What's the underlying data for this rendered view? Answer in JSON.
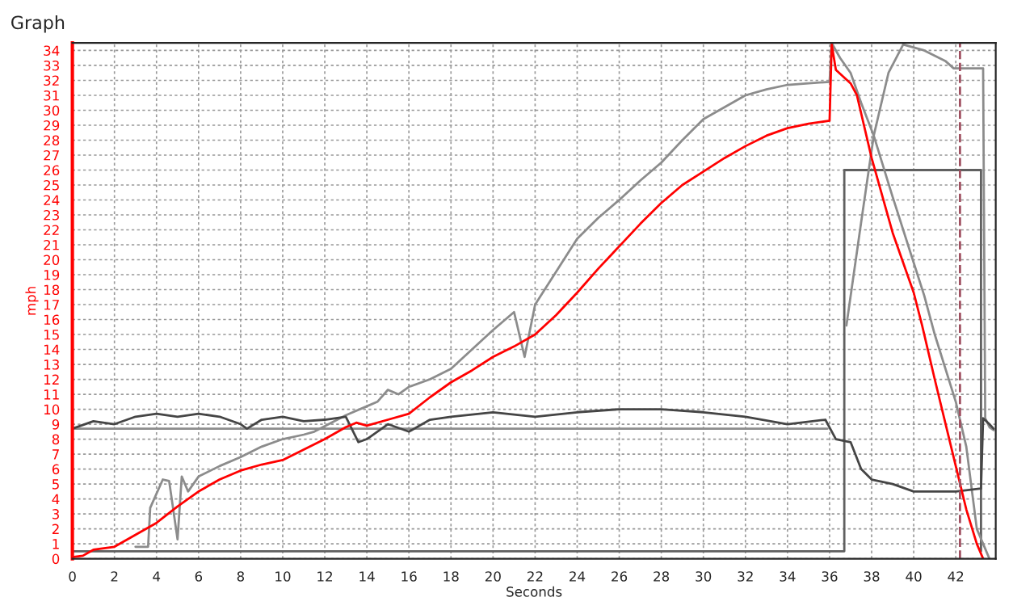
{
  "chart_data": {
    "type": "line",
    "title": "Graph",
    "xlabel": "Seconds",
    "ylabel": "mph",
    "xlim": [
      0,
      43.9
    ],
    "ylim": [
      0,
      34.5
    ],
    "xticks": [
      0,
      2,
      4,
      6,
      8,
      10,
      12,
      14,
      16,
      18,
      20,
      22,
      24,
      26,
      28,
      30,
      32,
      34,
      36,
      38,
      40,
      42
    ],
    "yticks": [
      0,
      1,
      2,
      3,
      4,
      5,
      6,
      7,
      8,
      9,
      10,
      11,
      12,
      13,
      14,
      15,
      16,
      17,
      18,
      19,
      20,
      21,
      22,
      23,
      24,
      25,
      26,
      27,
      28,
      29,
      30,
      31,
      32,
      33,
      34
    ],
    "grid": true,
    "legend": false,
    "line_style": "solid",
    "marker": "none",
    "series": [
      {
        "color": "#606060",
        "x": [
          0,
          36.7,
          36.7,
          43.2,
          43.2
        ],
        "values": [
          0.5,
          0.5,
          26,
          26,
          0.5
        ]
      },
      {
        "color": "#8c8c8c",
        "x": [
          0,
          35.9
        ],
        "values": [
          8.7,
          8.7
        ]
      },
      {
        "color": "#8c8c8c",
        "x": [
          3,
          3.6,
          3.7,
          4.3,
          4.6,
          5,
          5.2,
          5.5,
          6,
          7,
          8,
          9,
          10,
          11,
          11.5,
          13,
          14,
          14.5,
          15,
          15.5,
          16,
          17,
          18,
          19,
          20,
          21,
          21.5,
          22,
          23,
          24,
          25,
          26,
          27,
          28,
          29,
          30,
          31,
          32,
          33,
          34,
          35,
          36,
          36.1,
          36.5,
          37,
          37.5,
          38.1,
          39,
          40,
          40.5,
          41,
          42,
          42.5,
          43,
          43.6
        ],
        "values": [
          0.8,
          0.8,
          3.4,
          5.3,
          5.2,
          1.3,
          5.5,
          4.5,
          5.5,
          6.2,
          6.8,
          7.5,
          8,
          8.3,
          8.5,
          9.6,
          10.2,
          10.5,
          11.3,
          11,
          11.5,
          12,
          12.7,
          14,
          15.3,
          16.5,
          13.5,
          17,
          19.2,
          21.4,
          22.8,
          24,
          25.3,
          26.5,
          28,
          29.4,
          30.2,
          31,
          31.4,
          31.7,
          31.8,
          31.9,
          34.5,
          33.5,
          32.5,
          30.5,
          28.3,
          24.2,
          19.8,
          17.6,
          15,
          10.5,
          7.5,
          2,
          0
        ]
      },
      {
        "color": "#8c8c8c",
        "x": [
          36.8,
          37.5,
          38.1,
          38.8,
          39.5,
          40.5,
          41.5,
          41.9,
          43.3,
          43.4,
          43.6,
          43.8
        ],
        "values": [
          15.6,
          22.5,
          28.3,
          32.5,
          34.4,
          34,
          33.3,
          32.8,
          32.8,
          9.4,
          8.8,
          8.6
        ]
      },
      {
        "color": "#454545",
        "x": [
          0,
          1,
          2,
          3,
          4,
          5,
          6,
          7,
          8,
          8.3,
          9,
          10,
          11,
          12,
          13,
          13.6,
          14,
          15,
          16,
          17,
          18,
          20,
          22,
          24,
          26,
          28,
          30,
          32,
          34,
          35.8,
          36.3,
          37,
          37.5,
          38,
          39,
          40,
          42,
          43.2,
          43.3,
          43.6,
          43.8
        ],
        "values": [
          8.7,
          9.2,
          9,
          9.5,
          9.7,
          9.5,
          9.7,
          9.5,
          9,
          8.7,
          9.3,
          9.5,
          9.2,
          9.3,
          9.5,
          7.8,
          8,
          9,
          8.5,
          9.3,
          9.5,
          9.8,
          9.5,
          9.8,
          10,
          10,
          9.8,
          9.5,
          9,
          9.3,
          8,
          7.8,
          6,
          5.3,
          5,
          4.5,
          4.5,
          4.7,
          9.4,
          9,
          8.7
        ]
      },
      {
        "color": "#ff0000",
        "x": [
          0,
          0.5,
          1,
          2,
          3,
          4,
          5,
          6,
          7,
          8,
          9,
          10,
          11,
          12,
          13,
          13.5,
          14,
          15,
          16,
          17,
          18,
          19,
          20,
          21,
          22,
          23,
          24,
          25,
          26,
          27,
          28,
          29,
          30,
          31,
          32,
          33,
          34,
          35,
          36,
          36.1,
          36.3,
          37,
          37.3,
          38,
          39,
          40,
          40.4,
          41,
          42,
          42.5,
          43,
          43.3
        ],
        "values": [
          0.1,
          0.2,
          0.6,
          0.8,
          1.6,
          2.4,
          3.5,
          4.5,
          5.3,
          5.9,
          6.3,
          6.6,
          7.3,
          8,
          8.8,
          9.1,
          8.9,
          9.3,
          9.7,
          10.8,
          11.8,
          12.6,
          13.5,
          14.2,
          15,
          16.3,
          17.8,
          19.4,
          20.9,
          22.4,
          23.8,
          25,
          25.9,
          26.8,
          27.6,
          28.3,
          28.8,
          29.1,
          29.3,
          34.4,
          32.7,
          31.8,
          31,
          26.8,
          21.8,
          17.8,
          15.6,
          12,
          6.2,
          3.3,
          1,
          0
        ]
      }
    ],
    "ref_lines": [
      {
        "axis": "x",
        "value": 42.2,
        "color": "#a05060",
        "line_style": "dashed"
      }
    ]
  }
}
